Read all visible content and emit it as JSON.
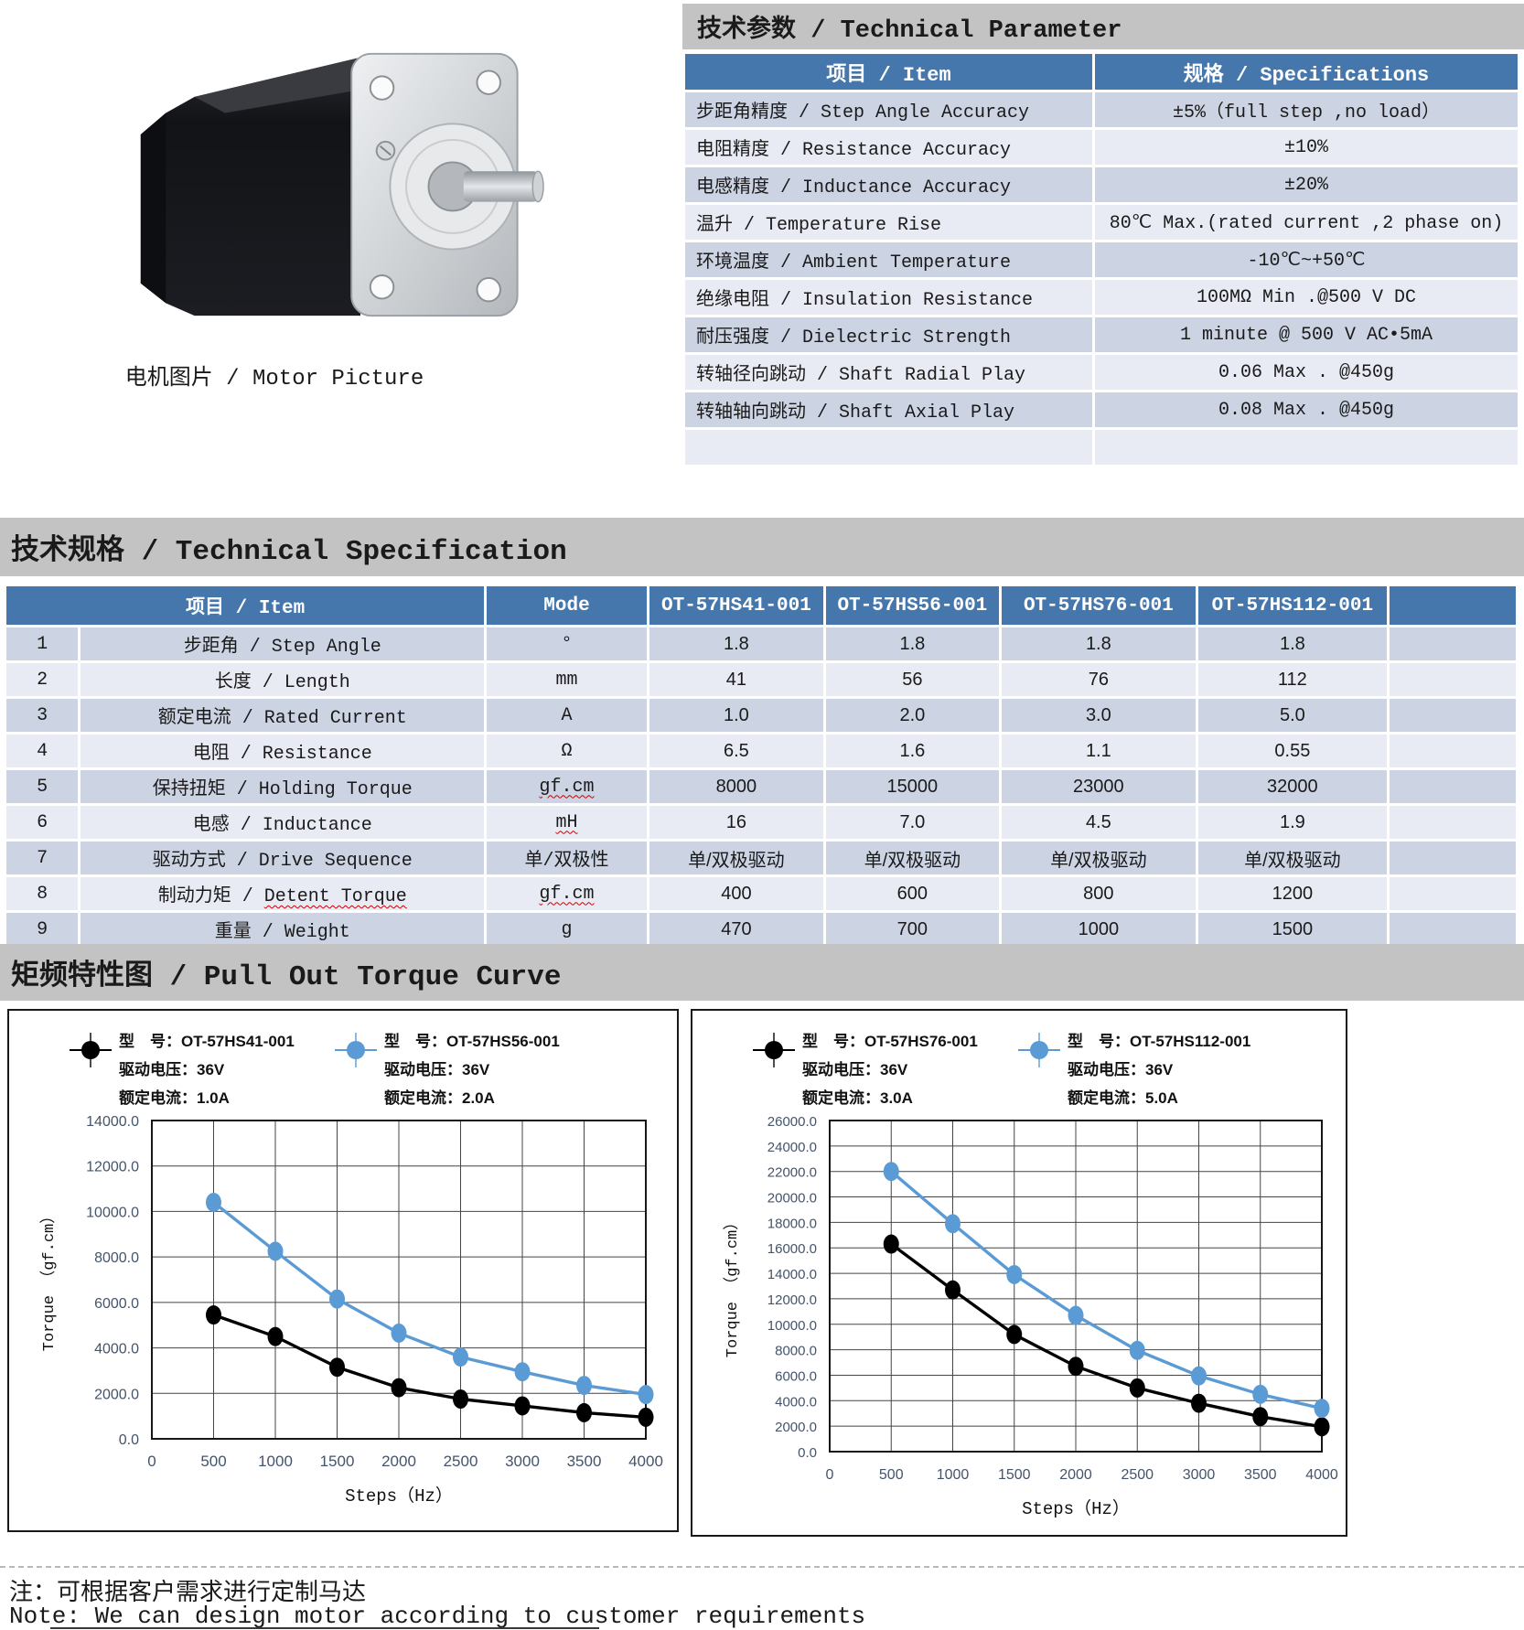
{
  "motor_section": {
    "caption": "电机图片 / Motor Picture"
  },
  "parameter_section": {
    "title": "技术参数 / Technical Parameter",
    "columns": [
      "项目 / Item",
      "规格 / Specifications"
    ],
    "rows": [
      [
        "步距角精度 / Step Angle Accuracy",
        "±5%（full step ,no load）"
      ],
      [
        "电阻精度 / Resistance Accuracy",
        "±10%"
      ],
      [
        "电感精度 / Inductance Accuracy",
        "±20%"
      ],
      [
        "温升 / Temperature Rise",
        "80℃ Max.(rated current ,2 phase on)"
      ],
      [
        "环境温度 / Ambient Temperature",
        "-10℃~+50℃"
      ],
      [
        "绝缘电阻 / Insulation Resistance",
        "100MΩ Min .@500 V DC"
      ],
      [
        "耐压强度 / Dielectric Strength",
        "1 minute @ 500 V AC•5mA"
      ],
      [
        "转轴径向跳动 / Shaft Radial Play",
        "0.06 Max . @450g"
      ],
      [
        "转轴轴向跳动 / Shaft Axial Play",
        "0.08 Max . @450g"
      ],
      [
        "",
        ""
      ]
    ]
  },
  "specification_section": {
    "title": "技术规格 / Technical Specification",
    "header": {
      "item": "项目 / Item",
      "mode": "Mode",
      "models": [
        "OT-57HS41-001",
        "OT-57HS56-001",
        "OT-57HS76-001",
        "OT-57HS112-001"
      ]
    },
    "rows": [
      {
        "no": "1",
        "item": "步距角 / Step Angle",
        "mode": "°",
        "sq_mode": false,
        "values": [
          "1.8",
          "1.8",
          "1.8",
          "1.8"
        ]
      },
      {
        "no": "2",
        "item": "长度 / Length",
        "mode": "mm",
        "sq_mode": false,
        "values": [
          "41",
          "56",
          "76",
          "112"
        ]
      },
      {
        "no": "3",
        "item": "额定电流 / Rated Current",
        "mode": "A",
        "sq_mode": false,
        "values": [
          "1.0",
          "2.0",
          "3.0",
          "5.0"
        ]
      },
      {
        "no": "4",
        "item": "电阻 / Resistance",
        "mode": "Ω",
        "sq_mode": false,
        "values": [
          "6.5",
          "1.6",
          "1.1",
          "0.55"
        ]
      },
      {
        "no": "5",
        "item": "保持扭矩 / Holding Torque",
        "mode": "gf.cm",
        "sq_mode": true,
        "values": [
          "8000",
          "15000",
          "23000",
          "32000"
        ]
      },
      {
        "no": "6",
        "item": "电感 / Inductance",
        "mode": "mH",
        "sq_mode": true,
        "values": [
          "16",
          "7.0",
          "4.5",
          "1.9"
        ]
      },
      {
        "no": "7",
        "item": "驱动方式 / Drive Sequence",
        "mode": "单/双极性",
        "sq_mode": false,
        "values": [
          "单/双极驱动",
          "单/双极驱动",
          "单/双极驱动",
          "单/双极驱动"
        ]
      },
      {
        "no": "8",
        "item_prefix": "制动力矩 / ",
        "item_sq": "Detent Torque",
        "mode": "gf.cm",
        "sq_mode": true,
        "values": [
          "400",
          "600",
          "800",
          "1200"
        ]
      },
      {
        "no": "9",
        "item": "重量 / Weight",
        "mode": "g",
        "sq_mode": false,
        "values": [
          "470",
          "700",
          "1000",
          "1500"
        ]
      }
    ]
  },
  "torque_section": {
    "title": "矩频特性图 / Pull Out Torque Curve"
  },
  "chart_data": [
    {
      "type": "line",
      "x": [
        500,
        1000,
        1500,
        2000,
        2500,
        3000,
        3500,
        4000
      ],
      "xticks": [
        0,
        500,
        1000,
        1500,
        2000,
        2500,
        3000,
        3500,
        4000
      ],
      "xlabel": "Steps（Hz）",
      "ylabel": "Torque （gf.cm）",
      "ylim": [
        0,
        14000
      ],
      "ystep": 2000,
      "grid": true,
      "series": [
        {
          "name": "OT-57HS41-001",
          "color": "#000000",
          "values": [
            5450,
            4500,
            3150,
            2250,
            1750,
            1450,
            1150,
            950
          ]
        },
        {
          "name": "OT-57HS56-001",
          "color": "#5b9bd5",
          "values": [
            10400,
            8250,
            6150,
            4650,
            3600,
            2950,
            2350,
            1950
          ]
        }
      ],
      "legend": [
        [
          "型　号：OT-57HS41-001",
          "驱动电压：36V",
          "额定电流：1.0A"
        ],
        [
          "型　号：OT-57HS56-001",
          "驱动电压：36V",
          "额定电流：2.0A"
        ]
      ]
    },
    {
      "type": "line",
      "x": [
        500,
        1000,
        1500,
        2000,
        2500,
        3000,
        3500,
        4000
      ],
      "xticks": [
        0,
        500,
        1000,
        1500,
        2000,
        2500,
        3000,
        3500,
        4000
      ],
      "xlabel": "Steps（Hz）",
      "ylabel": "Torque （gf.cm）",
      "ylim": [
        0,
        26000
      ],
      "ystep": 2000,
      "grid": true,
      "series": [
        {
          "name": "OT-57HS76-001",
          "color": "#000000",
          "values": [
            16300,
            12700,
            9200,
            6700,
            5000,
            3800,
            2750,
            1950
          ]
        },
        {
          "name": "OT-57HS112-001",
          "color": "#5b9bd5",
          "values": [
            22000,
            17900,
            13900,
            10700,
            7950,
            5950,
            4500,
            3400
          ]
        }
      ],
      "legend": [
        [
          "型　号：OT-57HS76-001",
          "驱动电压：36V",
          "额定电流：3.0A"
        ],
        [
          "型　号：OT-57HS112-001",
          "驱动电压：36V",
          "额定电流：5.0A"
        ]
      ]
    }
  ],
  "notes": {
    "zh": "注：可根据客户需求进行定制马达",
    "en": "Note: We can design motor according to customer requirements"
  },
  "colors": {
    "table_header_blue": "#4577ad",
    "row_dark": "#ccd3e3",
    "row_light": "#e9ebf4",
    "band_gray": "#c3c3c3",
    "series_black": "#000000",
    "series_blue": "#5b9bd5",
    "tick_label": "#44546a"
  }
}
